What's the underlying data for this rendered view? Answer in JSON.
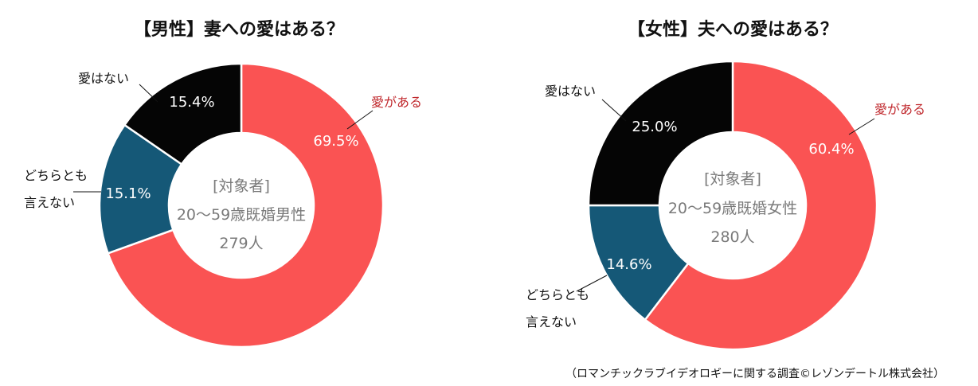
{
  "colors": {
    "love": "#fa5353",
    "unsure": "#155877",
    "no_love": "#050505",
    "love_label": "#c0282d",
    "center_text": "#7a7a7a"
  },
  "chart_data": [
    {
      "type": "pie",
      "title": "【男性】妻への愛はある？",
      "categories": [
        "愛がある",
        "どちらとも言えない",
        "愛はない"
      ],
      "category_labels": [
        [
          "愛がある"
        ],
        [
          "どちらとも",
          "言えない"
        ],
        [
          "愛はない"
        ]
      ],
      "values": [
        69.5,
        15.1,
        15.4
      ],
      "value_labels": [
        "69.5%",
        "15.1%",
        "15.4%"
      ],
      "donut": true,
      "center_text": [
        "[対象者]",
        "20～59歳既婚男性",
        "279人"
      ]
    },
    {
      "type": "pie",
      "title": "【女性】夫への愛はある？",
      "categories": [
        "愛がある",
        "どちらとも言えない",
        "愛はない"
      ],
      "category_labels": [
        [
          "愛がある"
        ],
        [
          "どちらとも",
          "言えない"
        ],
        [
          "愛はない"
        ]
      ],
      "values": [
        60.4,
        14.6,
        25.0
      ],
      "value_labels": [
        "60.4%",
        "14.6%",
        "25.0%"
      ],
      "donut": true,
      "center_text": [
        "[対象者]",
        "20～59歳既婚女性",
        "280人"
      ]
    }
  ],
  "source": "（ロマンチックラブイデオロギーに関する調査©レゾンデートル株式会社）"
}
